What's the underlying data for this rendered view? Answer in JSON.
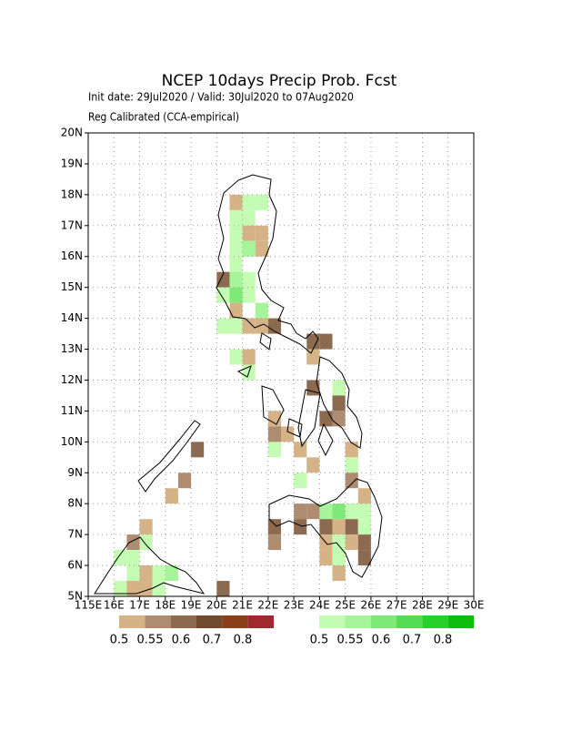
{
  "map": {
    "title": "NCEP 10days Precip Prob. Fcst",
    "subtitle": "Init date: 29Jul2020 / Valid: 30Jul2020 to 07Aug2020",
    "note": "Reg Calibrated (CCA-empirical)",
    "xlim": [
      115,
      130
    ],
    "ylim": [
      5,
      20
    ],
    "cell_size": 0.5,
    "grid": true,
    "xticks": [
      {
        "value": 115,
        "label": "115E"
      },
      {
        "value": 116,
        "label": "16E"
      },
      {
        "value": 117,
        "label": "17E"
      },
      {
        "value": 118,
        "label": "18E"
      },
      {
        "value": 119,
        "label": "19E"
      },
      {
        "value": 120,
        "label": "20E"
      },
      {
        "value": 121,
        "label": "21E"
      },
      {
        "value": 122,
        "label": "22E"
      },
      {
        "value": 123,
        "label": "23E"
      },
      {
        "value": 124,
        "label": "24E"
      },
      {
        "value": 125,
        "label": "25E"
      },
      {
        "value": 126,
        "label": "26E"
      },
      {
        "value": 127,
        "label": "27E"
      },
      {
        "value": 128,
        "label": "28E"
      },
      {
        "value": 129,
        "label": "29E"
      },
      {
        "value": 130,
        "label": "30E"
      }
    ],
    "yticks": [
      {
        "value": 5,
        "label": "5N"
      },
      {
        "value": 6,
        "label": "6N"
      },
      {
        "value": 7,
        "label": "7N"
      },
      {
        "value": 8,
        "label": "8N"
      },
      {
        "value": 9,
        "label": "9N"
      },
      {
        "value": 10,
        "label": "10N"
      },
      {
        "value": 11,
        "label": "11N"
      },
      {
        "value": 12,
        "label": "12N"
      },
      {
        "value": 13,
        "label": "13N"
      },
      {
        "value": 14,
        "label": "14N"
      },
      {
        "value": 15,
        "label": "15N"
      },
      {
        "value": 16,
        "label": "16N"
      },
      {
        "value": 17,
        "label": "17N"
      },
      {
        "value": 18,
        "label": "18N"
      },
      {
        "value": 19,
        "label": "19N"
      },
      {
        "value": 20,
        "label": "20N"
      }
    ],
    "legend": {
      "dry": {
        "levels": [
          0.5,
          0.55,
          0.6,
          0.7,
          0.8
        ],
        "colors": [
          "#d6b287",
          "#ad8c72",
          "#8c6a4f",
          "#6f4a2c",
          "#8a3f1b",
          "#a0282e"
        ]
      },
      "wet": {
        "levels": [
          0.5,
          0.55,
          0.6,
          0.7,
          0.8
        ],
        "colors": [
          "#c4fcb4",
          "#a6f59a",
          "#7ee878",
          "#55dc55",
          "#2ad02a",
          "#0ebe0e"
        ]
      }
    },
    "cells": [
      {
        "lon": 120.5,
        "lat": 17.5,
        "kind": "dry",
        "prob": 0.5
      },
      {
        "lon": 121,
        "lat": 17.5,
        "kind": "wet",
        "prob": 0.5
      },
      {
        "lon": 121.5,
        "lat": 17.5,
        "kind": "wet",
        "prob": 0.5
      },
      {
        "lon": 120.5,
        "lat": 17,
        "kind": "wet",
        "prob": 0.5
      },
      {
        "lon": 121,
        "lat": 17,
        "kind": "wet",
        "prob": 0.5
      },
      {
        "lon": 121,
        "lat": 16.5,
        "kind": "dry",
        "prob": 0.5
      },
      {
        "lon": 121.5,
        "lat": 16.5,
        "kind": "dry",
        "prob": 0.5
      },
      {
        "lon": 120.5,
        "lat": 16.5,
        "kind": "wet",
        "prob": 0.5
      },
      {
        "lon": 120.5,
        "lat": 16,
        "kind": "wet",
        "prob": 0.5
      },
      {
        "lon": 121,
        "lat": 16,
        "kind": "wet",
        "prob": 0.55
      },
      {
        "lon": 121.5,
        "lat": 16,
        "kind": "dry",
        "prob": 0.5
      },
      {
        "lon": 120.5,
        "lat": 15.5,
        "kind": "wet",
        "prob": 0.5
      },
      {
        "lon": 120,
        "lat": 15,
        "kind": "dry",
        "prob": 0.6
      },
      {
        "lon": 120.5,
        "lat": 15,
        "kind": "wet",
        "prob": 0.55
      },
      {
        "lon": 121,
        "lat": 15,
        "kind": "wet",
        "prob": 0.5
      },
      {
        "lon": 120,
        "lat": 14.5,
        "kind": "wet",
        "prob": 0.5
      },
      {
        "lon": 120.5,
        "lat": 14.5,
        "kind": "wet",
        "prob": 0.6
      },
      {
        "lon": 121,
        "lat": 14.5,
        "kind": "wet",
        "prob": 0.5
      },
      {
        "lon": 120.5,
        "lat": 14,
        "kind": "dry",
        "prob": 0.5
      },
      {
        "lon": 121.5,
        "lat": 14,
        "kind": "wet",
        "prob": 0.55
      },
      {
        "lon": 120,
        "lat": 13.5,
        "kind": "wet",
        "prob": 0.5
      },
      {
        "lon": 120.5,
        "lat": 13.5,
        "kind": "wet",
        "prob": 0.5
      },
      {
        "lon": 121,
        "lat": 13.5,
        "kind": "dry",
        "prob": 0.5
      },
      {
        "lon": 122,
        "lat": 13.5,
        "kind": "dry",
        "prob": 0.6
      },
      {
        "lon": 121.5,
        "lat": 13.5,
        "kind": "dry",
        "prob": 0.5
      },
      {
        "lon": 123.5,
        "lat": 13,
        "kind": "dry",
        "prob": 0.6
      },
      {
        "lon": 124,
        "lat": 13,
        "kind": "dry",
        "prob": 0.6
      },
      {
        "lon": 123.5,
        "lat": 12.5,
        "kind": "dry",
        "prob": 0.5
      },
      {
        "lon": 121,
        "lat": 12.5,
        "kind": "dry",
        "prob": 0.5
      },
      {
        "lon": 120.5,
        "lat": 12.5,
        "kind": "wet",
        "prob": 0.5
      },
      {
        "lon": 121,
        "lat": 12,
        "kind": "wet",
        "prob": 0.5
      },
      {
        "lon": 123.5,
        "lat": 11.5,
        "kind": "dry",
        "prob": 0.6
      },
      {
        "lon": 124.5,
        "lat": 11.5,
        "kind": "wet",
        "prob": 0.5
      },
      {
        "lon": 124.5,
        "lat": 11,
        "kind": "dry",
        "prob": 0.6
      },
      {
        "lon": 124,
        "lat": 10.5,
        "kind": "dry",
        "prob": 0.6
      },
      {
        "lon": 124.5,
        "lat": 10.5,
        "kind": "dry",
        "prob": 0.55
      },
      {
        "lon": 122,
        "lat": 10.5,
        "kind": "dry",
        "prob": 0.5
      },
      {
        "lon": 122,
        "lat": 10,
        "kind": "dry",
        "prob": 0.55
      },
      {
        "lon": 122.5,
        "lat": 10,
        "kind": "dry",
        "prob": 0.5
      },
      {
        "lon": 122,
        "lat": 9.5,
        "kind": "wet",
        "prob": 0.5
      },
      {
        "lon": 125,
        "lat": 9.5,
        "kind": "dry",
        "prob": 0.5
      },
      {
        "lon": 123,
        "lat": 9.5,
        "kind": "dry",
        "prob": 0.5
      },
      {
        "lon": 123.5,
        "lat": 9,
        "kind": "dry",
        "prob": 0.5
      },
      {
        "lon": 125,
        "lat": 9,
        "kind": "wet",
        "prob": 0.5
      },
      {
        "lon": 123,
        "lat": 8.5,
        "kind": "wet",
        "prob": 0.5
      },
      {
        "lon": 119,
        "lat": 9.5,
        "kind": "dry",
        "prob": 0.6
      },
      {
        "lon": 118.5,
        "lat": 8.5,
        "kind": "dry",
        "prob": 0.55
      },
      {
        "lon": 118,
        "lat": 8,
        "kind": "dry",
        "prob": 0.5
      },
      {
        "lon": 123,
        "lat": 7.5,
        "kind": "dry",
        "prob": 0.55
      },
      {
        "lon": 123.5,
        "lat": 7.5,
        "kind": "dry",
        "prob": 0.55
      },
      {
        "lon": 124,
        "lat": 7.5,
        "kind": "wet",
        "prob": 0.55
      },
      {
        "lon": 124.5,
        "lat": 7.5,
        "kind": "wet",
        "prob": 0.6
      },
      {
        "lon": 125,
        "lat": 7.5,
        "kind": "wet",
        "prob": 0.5
      },
      {
        "lon": 125.5,
        "lat": 7.5,
        "kind": "wet",
        "prob": 0.5
      },
      {
        "lon": 125,
        "lat": 8.5,
        "kind": "dry",
        "prob": 0.55
      },
      {
        "lon": 125.5,
        "lat": 8,
        "kind": "dry",
        "prob": 0.5
      },
      {
        "lon": 122,
        "lat": 7,
        "kind": "dry",
        "prob": 0.6
      },
      {
        "lon": 122,
        "lat": 6.5,
        "kind": "dry",
        "prob": 0.55
      },
      {
        "lon": 123,
        "lat": 7,
        "kind": "dry",
        "prob": 0.6
      },
      {
        "lon": 124,
        "lat": 7,
        "kind": "dry",
        "prob": 0.6
      },
      {
        "lon": 124.5,
        "lat": 7,
        "kind": "dry",
        "prob": 0.5
      },
      {
        "lon": 125,
        "lat": 7,
        "kind": "dry",
        "prob": 0.6
      },
      {
        "lon": 125.5,
        "lat": 7,
        "kind": "wet",
        "prob": 0.5
      },
      {
        "lon": 124,
        "lat": 6.5,
        "kind": "dry",
        "prob": 0.5
      },
      {
        "lon": 124.5,
        "lat": 6.5,
        "kind": "wet",
        "prob": 0.5
      },
      {
        "lon": 125,
        "lat": 6.5,
        "kind": "dry",
        "prob": 0.5
      },
      {
        "lon": 125.5,
        "lat": 6.5,
        "kind": "dry",
        "prob": 0.6
      },
      {
        "lon": 124,
        "lat": 6,
        "kind": "dry",
        "prob": 0.5
      },
      {
        "lon": 124.5,
        "lat": 6,
        "kind": "wet",
        "prob": 0.5
      },
      {
        "lon": 124.5,
        "lat": 5.5,
        "kind": "dry",
        "prob": 0.5
      },
      {
        "lon": 125.5,
        "lat": 6,
        "kind": "dry",
        "prob": 0.6
      },
      {
        "lon": 117,
        "lat": 7,
        "kind": "dry",
        "prob": 0.5
      },
      {
        "lon": 116.5,
        "lat": 6.5,
        "kind": "dry",
        "prob": 0.55
      },
      {
        "lon": 117,
        "lat": 6.5,
        "kind": "wet",
        "prob": 0.5
      },
      {
        "lon": 116,
        "lat": 6,
        "kind": "wet",
        "prob": 0.5
      },
      {
        "lon": 116.5,
        "lat": 6,
        "kind": "wet",
        "prob": 0.5
      },
      {
        "lon": 117,
        "lat": 5.5,
        "kind": "dry",
        "prob": 0.5
      },
      {
        "lon": 116.5,
        "lat": 5.5,
        "kind": "wet",
        "prob": 0.5
      },
      {
        "lon": 117.5,
        "lat": 5.5,
        "kind": "wet",
        "prob": 0.5
      },
      {
        "lon": 118,
        "lat": 5.5,
        "kind": "wet",
        "prob": 0.55
      },
      {
        "lon": 116,
        "lat": 5,
        "kind": "wet",
        "prob": 0.5
      },
      {
        "lon": 116.5,
        "lat": 5,
        "kind": "dry",
        "prob": 0.5
      },
      {
        "lon": 117,
        "lat": 5,
        "kind": "dry",
        "prob": 0.5
      },
      {
        "lon": 117.5,
        "lat": 5,
        "kind": "wet",
        "prob": 0.5
      },
      {
        "lon": 120,
        "lat": 5,
        "kind": "dry",
        "prob": 0.6
      }
    ]
  }
}
